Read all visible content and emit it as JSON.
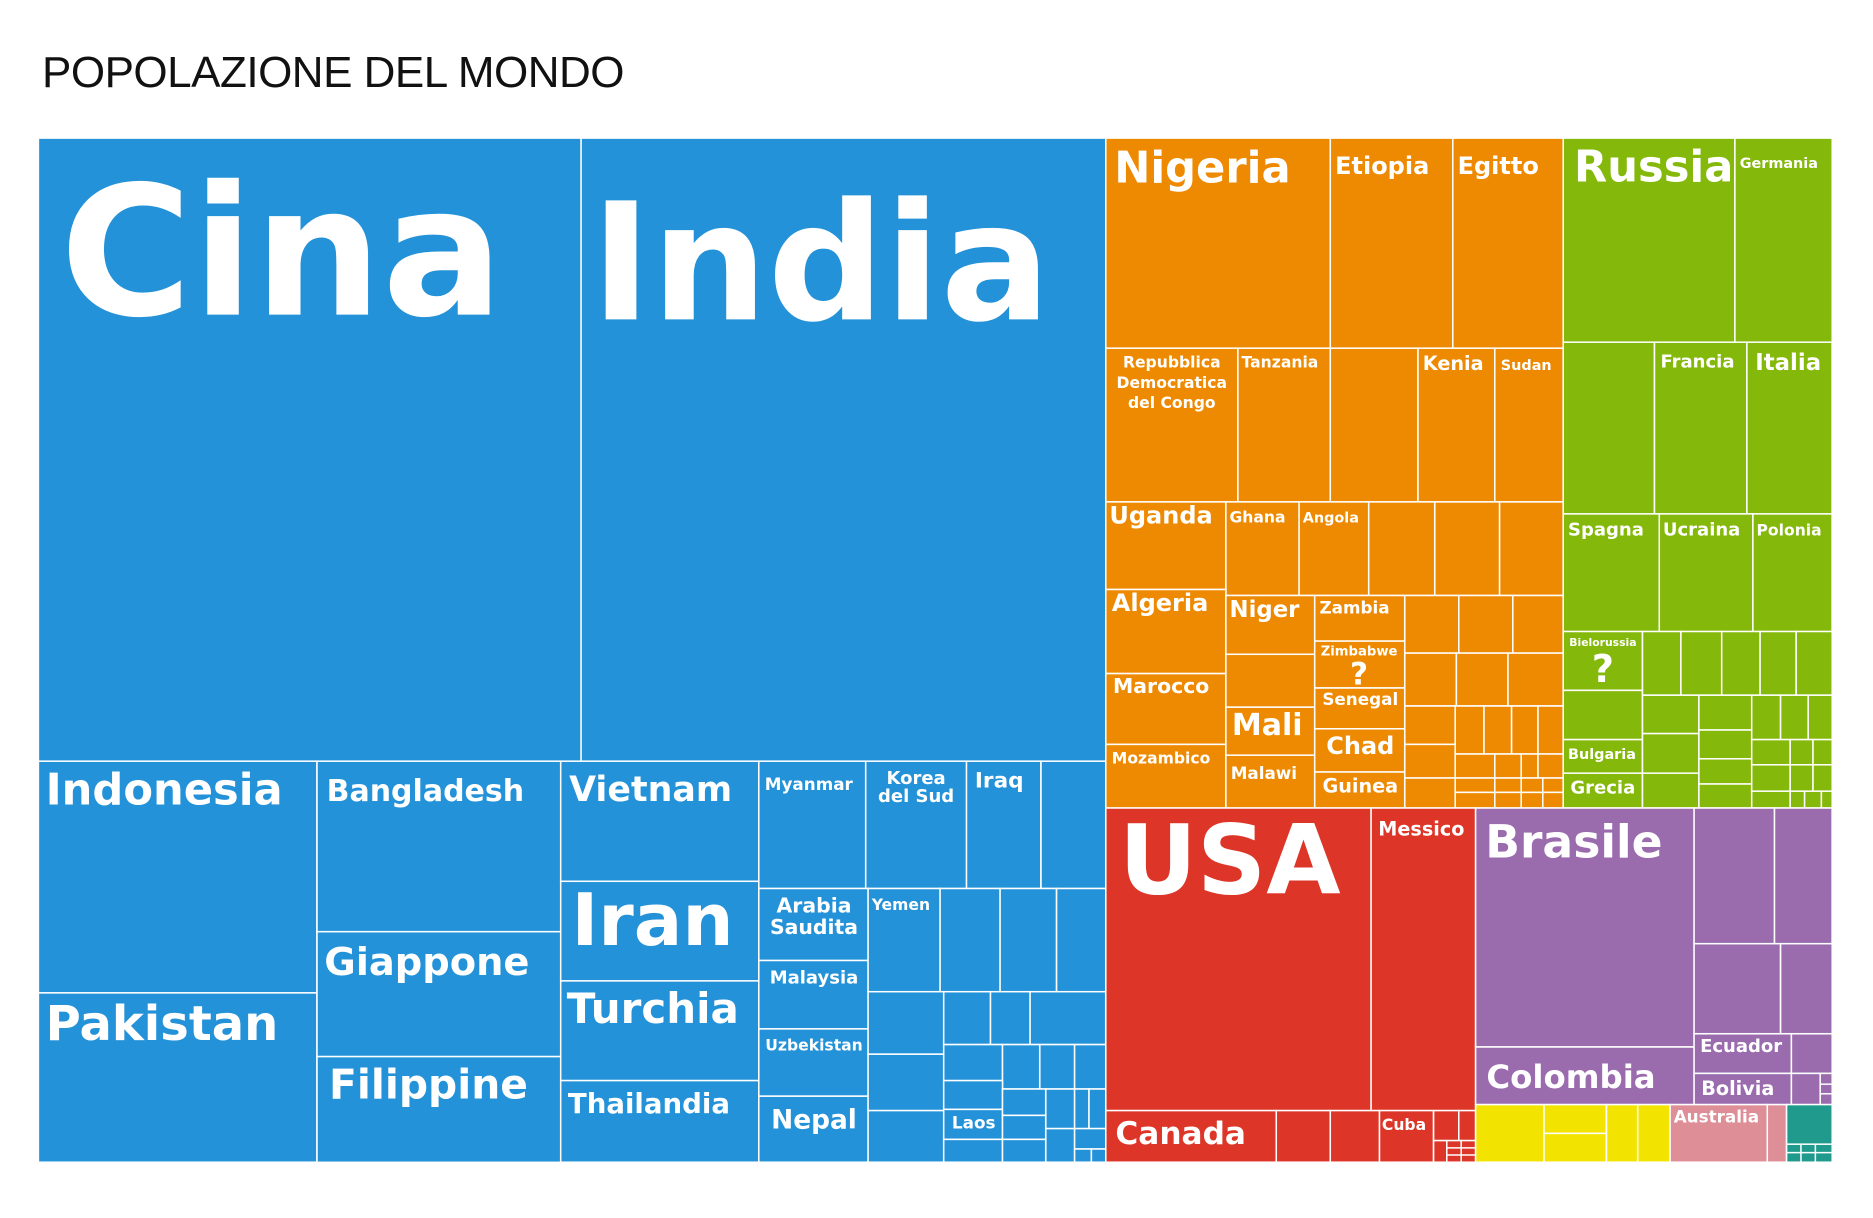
{
  "title": "POPOLAZIONE DEL MONDO",
  "colors": {
    "asia": "#2492d8",
    "africa": "#ee8a02",
    "europe": "#84b80a",
    "north_america": "#dd3528",
    "south_america": "#9a6cae",
    "oceania_yellow": "#f3e300",
    "oceania_pink": "#dd8e96",
    "oceania_teal": "#1f9a8c"
  },
  "chart_data": {
    "type": "treemap",
    "title": "POPOLAZIONE DEL MONDO",
    "groups": [
      {
        "name": "",
        "color_key": "asia",
        "countries": [
          "Cina",
          "India",
          "Indonesia",
          "Pakistan",
          "Bangladesh",
          "Giappone",
          "Filippine",
          "Vietnam",
          "Iran",
          "Turchia",
          "Thailandia",
          "Myanmar",
          "Korea del Sud",
          "Iraq",
          "Arabia Saudita",
          "Malaysia",
          "Uzbekistan",
          "Nepal",
          "Yemen",
          "Laos"
        ]
      },
      {
        "name": "",
        "color_key": "africa",
        "countries": [
          "Nigeria",
          "Etiopia",
          "Egitto",
          "Repubblica Democratica del Congo",
          "Tanzania",
          "Kenia",
          "Sudan",
          "Uganda",
          "Ghana",
          "Angola",
          "Algeria",
          "Niger",
          "Zambia",
          "Zimbabwe",
          "Marocco",
          "Mali",
          "Senegal",
          "Chad",
          "Mozambico",
          "Malawi",
          "Guinea"
        ]
      },
      {
        "name": "",
        "color_key": "europe",
        "countries": [
          "Russia",
          "Germania",
          "Francia",
          "Italia",
          "Spagna",
          "Ucraina",
          "Polonia",
          "Bielorussia",
          "Bulgaria",
          "Grecia"
        ]
      },
      {
        "name": "",
        "color_key": "north_america",
        "countries": [
          "USA",
          "Messico",
          "Canada",
          "Cuba"
        ]
      },
      {
        "name": "",
        "color_key": "south_america",
        "countries": [
          "Brasile",
          "Colombia",
          "Ecuador",
          "Bolivia"
        ]
      },
      {
        "name": "",
        "color_key": "oceania",
        "countries": [
          "Australia"
        ]
      }
    ],
    "question_marks": [
      "?",
      "?"
    ]
  }
}
